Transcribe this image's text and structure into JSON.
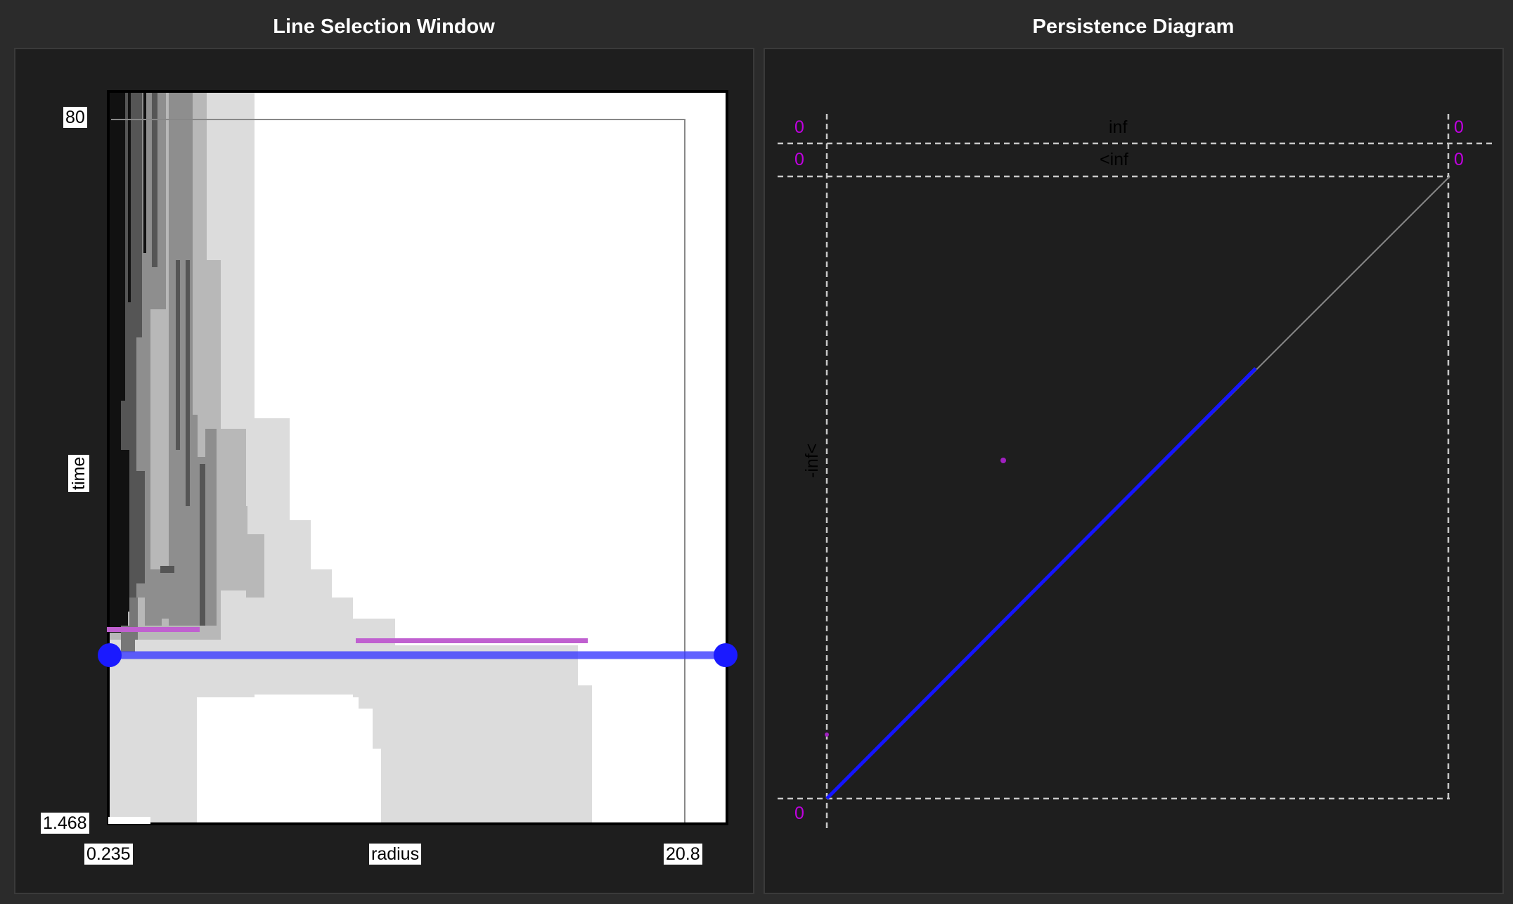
{
  "line_selection": {
    "title": "Line Selection Window",
    "y_axis": {
      "label": "time",
      "max": "80",
      "min": "1.468"
    },
    "x_axis": {
      "label": "radius",
      "min": "0.235",
      "max": "20.8"
    },
    "colors": {
      "selection_line": "#3b3bff",
      "bars": "#c060d0"
    }
  },
  "persistence": {
    "title": "Persistence Diagram",
    "labels": {
      "inf": "inf",
      "lt_inf": "<inf",
      "neg_inf": "-inf<",
      "top_left_count_1": "0",
      "top_left_count_2": "0",
      "top_right_count_1": "0",
      "top_right_count_2": "0",
      "bottom_left_count": "0"
    },
    "colors": {
      "diagonal_line": "#1414ff",
      "points": "#a020c0",
      "counts": "#c000e0"
    }
  }
}
